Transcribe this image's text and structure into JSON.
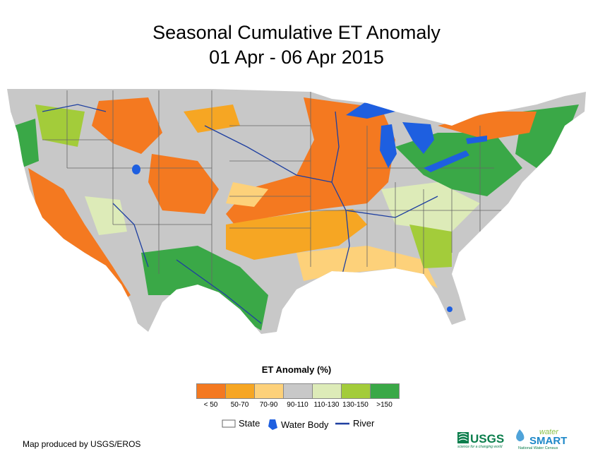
{
  "title": {
    "line1": "Seasonal Cumulative ET Anomaly",
    "line2": "01 Apr - 06 Apr 2015"
  },
  "legend": {
    "title": "ET Anomaly (%)",
    "classes": [
      {
        "label": "< 50",
        "color": "#F47920"
      },
      {
        "label": "50-70",
        "color": "#F6A623"
      },
      {
        "label": "70-90",
        "color": "#FDD17A"
      },
      {
        "label": "90-110",
        "color": "#C8C8C8"
      },
      {
        "label": "110-130",
        "color": "#DDEBB8"
      },
      {
        "label": "130-150",
        "color": "#A3CC3A"
      },
      {
        "label": ">150",
        "color": "#3AA847"
      }
    ],
    "keys": {
      "state": "State",
      "water": "Water Body",
      "river": "River"
    }
  },
  "credit": "Map produced by USGS/EROS",
  "logos": {
    "usgs": "USGS",
    "usgs_tagline": "science for a changing world",
    "watersmart_top": "water",
    "watersmart_bottom": "SMART",
    "watersmart_tagline": "National Water Census"
  },
  "colors": {
    "water": "#1E5FE0",
    "river": "#1E3FA0",
    "state_line": "#666666"
  }
}
